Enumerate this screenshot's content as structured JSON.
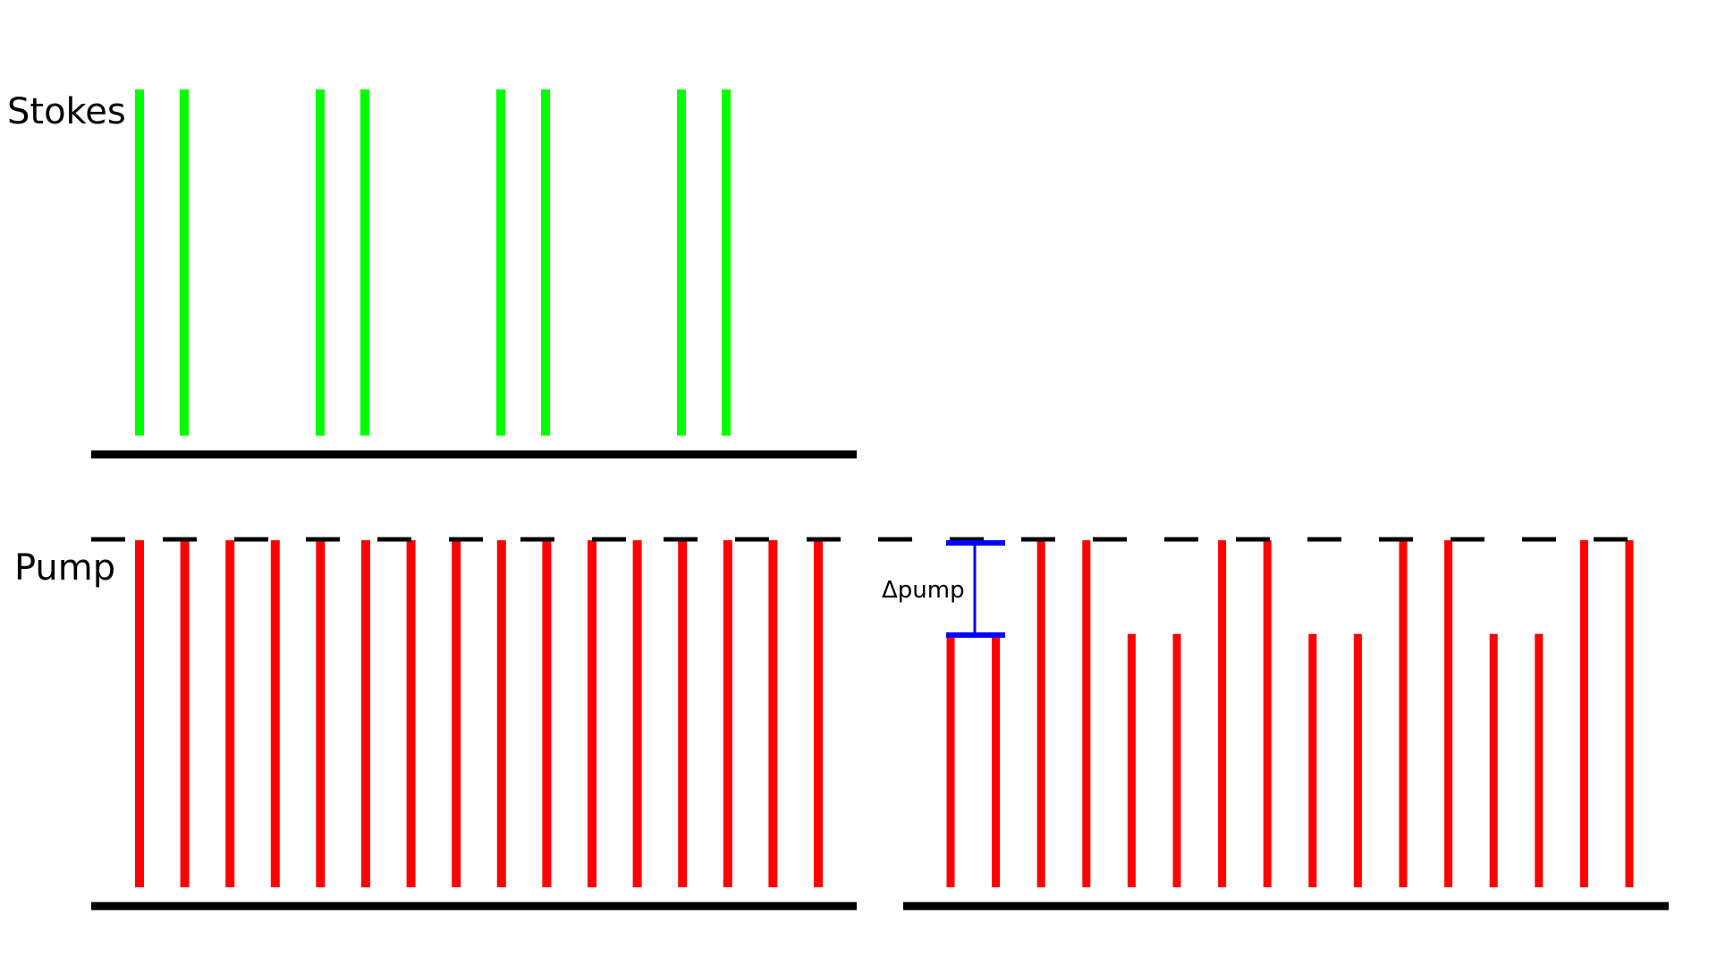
{
  "labels": {
    "stokes": "Stokes",
    "pump": "Pump",
    "delta_pump": "Δpump"
  },
  "colors": {
    "stokes_pulse": "#00ff00",
    "pump_pulse": "#ff0000",
    "baseline": "#000000",
    "reference_dashes": "#000000",
    "delta_marker": "#0000ff"
  },
  "stokes_train": {
    "pulse_pairs": 4,
    "pulse_levels": [
      1,
      1,
      1,
      1,
      1,
      1,
      1,
      1
    ]
  },
  "pump_train_left": {
    "pulse_levels": [
      1,
      1,
      1,
      1,
      1,
      1,
      1,
      1,
      1,
      1,
      1,
      1,
      1,
      1,
      1,
      1
    ]
  },
  "pump_train_right": {
    "pulse_levels": [
      0.73,
      0.73,
      1,
      1,
      0.73,
      0.73,
      1,
      1,
      0.73,
      0.73,
      1,
      1,
      0.73,
      0.73,
      1,
      1
    ]
  }
}
